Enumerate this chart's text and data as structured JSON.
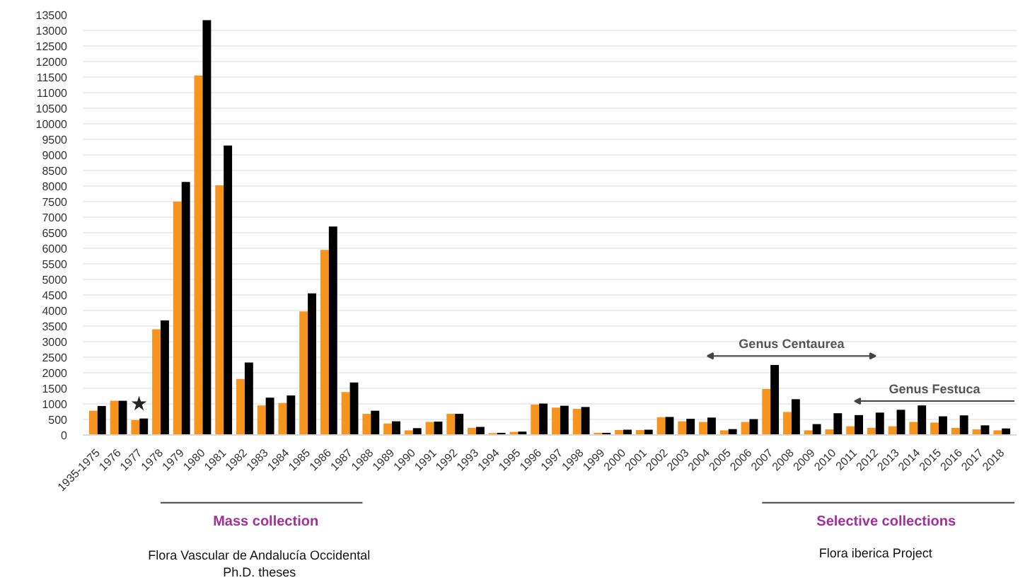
{
  "chart_data": {
    "type": "bar",
    "categories": [
      "1935-1975",
      "1976",
      "1977",
      "1978",
      "1979",
      "1980",
      "1981",
      "1982",
      "1983",
      "1984",
      "1985",
      "1986",
      "1987",
      "1988",
      "1989",
      "1990",
      "1991",
      "1992",
      "1993",
      "1994",
      "1995",
      "1996",
      "1997",
      "1998",
      "1999",
      "2000",
      "2001",
      "2002",
      "2003",
      "2004",
      "2005",
      "2006",
      "2007",
      "2008",
      "2009",
      "2010",
      "2011",
      "2012",
      "2013",
      "2014",
      "2015",
      "2016",
      "2017",
      "2018"
    ],
    "series": [
      {
        "color": "#f7941d",
        "values": [
          780,
          1100,
          480,
          3400,
          7500,
          11550,
          8020,
          1800,
          950,
          1030,
          3970,
          5950,
          1380,
          680,
          370,
          150,
          420,
          680,
          230,
          60,
          100,
          980,
          880,
          840,
          70,
          160,
          160,
          570,
          440,
          420,
          150,
          420,
          1480,
          740,
          150,
          180,
          280,
          230,
          280,
          420,
          400,
          230,
          180,
          150
        ]
      },
      {
        "color": "#000000",
        "values": [
          930,
          1100,
          530,
          3680,
          8130,
          13330,
          9300,
          2330,
          1200,
          1270,
          4550,
          6700,
          1690,
          780,
          440,
          220,
          430,
          680,
          260,
          70,
          110,
          1010,
          940,
          900,
          70,
          170,
          170,
          580,
          520,
          560,
          190,
          510,
          2250,
          1150,
          350,
          700,
          640,
          720,
          810,
          950,
          600,
          630,
          310,
          210
        ]
      }
    ],
    "ylim": [
      0,
      13500
    ],
    "yticks": [
      0,
      500,
      1000,
      1500,
      2000,
      2500,
      3000,
      3500,
      4000,
      4500,
      5000,
      5500,
      6000,
      6500,
      7000,
      7500,
      8000,
      8500,
      9000,
      9500,
      10000,
      10500,
      11000,
      11500,
      12000,
      12500,
      13000,
      13500
    ],
    "grid": "y",
    "annotations": [
      "★",
      "Genus Centaurea",
      "Genus Festuca",
      "Mass collection",
      "Flora Vascular de Andalucía Occidental\nPh.D. theses",
      "Selective collections",
      "Flora iberica Project"
    ]
  }
}
